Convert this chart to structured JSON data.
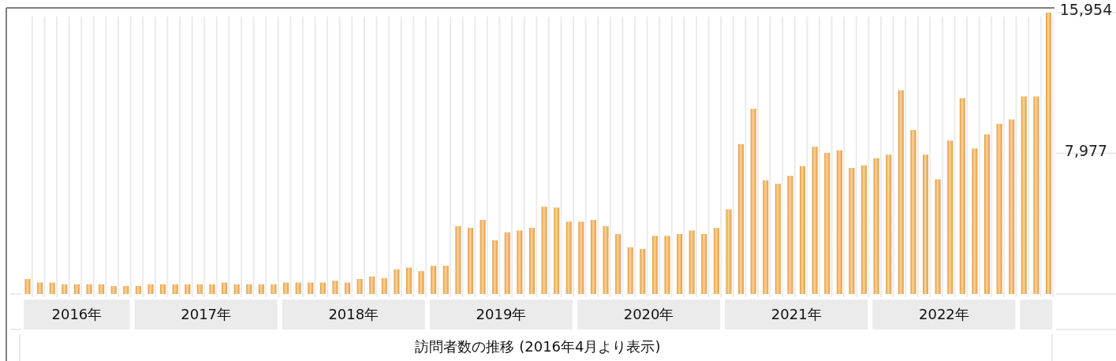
{
  "chart_data": {
    "type": "bar",
    "xlabel": "訪問者数の推移 (2016年4月より表示)",
    "x": [
      "2016-04",
      "2016-05",
      "2016-06",
      "2016-07",
      "2016-08",
      "2016-09",
      "2016-10",
      "2016-11",
      "2016-12",
      "2017-01",
      "2017-02",
      "2017-03",
      "2017-04",
      "2017-05",
      "2017-06",
      "2017-07",
      "2017-08",
      "2017-09",
      "2017-10",
      "2017-11",
      "2017-12",
      "2018-01",
      "2018-02",
      "2018-03",
      "2018-04",
      "2018-05",
      "2018-06",
      "2018-07",
      "2018-08",
      "2018-09",
      "2018-10",
      "2018-11",
      "2018-12",
      "2019-01",
      "2019-02",
      "2019-03",
      "2019-04",
      "2019-05",
      "2019-06",
      "2019-07",
      "2019-08",
      "2019-09",
      "2019-10",
      "2019-11",
      "2019-12",
      "2020-01",
      "2020-02",
      "2020-03",
      "2020-04",
      "2020-05",
      "2020-06",
      "2020-07",
      "2020-08",
      "2020-09",
      "2020-10",
      "2020-11",
      "2020-12",
      "2021-01",
      "2021-02",
      "2021-03",
      "2021-04",
      "2021-05",
      "2021-06",
      "2021-07",
      "2021-08",
      "2021-09",
      "2021-10",
      "2021-11",
      "2021-12",
      "2022-01",
      "2022-02",
      "2022-03",
      "2022-04",
      "2022-05",
      "2022-06",
      "2022-07",
      "2022-08",
      "2022-09",
      "2022-10",
      "2022-11",
      "2022-12",
      "2023-01",
      "2023-02",
      "2023-03"
    ],
    "values": [
      850,
      650,
      650,
      550,
      550,
      550,
      550,
      450,
      450,
      450,
      550,
      550,
      550,
      550,
      550,
      550,
      650,
      550,
      550,
      550,
      550,
      650,
      650,
      650,
      650,
      750,
      650,
      850,
      1000,
      900,
      1400,
      1500,
      1300,
      1600,
      1600,
      3850,
      3750,
      4200,
      3050,
      3500,
      3600,
      3750,
      4950,
      4900,
      4100,
      4100,
      4200,
      3850,
      3400,
      2650,
      2550,
      3300,
      3300,
      3400,
      3600,
      3400,
      3750,
      4800,
      8500,
      10500,
      6450,
      6250,
      6700,
      7250,
      8350,
      8000,
      8150,
      7150,
      7300,
      7700,
      7900,
      11550,
      9300,
      7900,
      6500,
      8700,
      11100,
      8250,
      9050,
      9650,
      9900,
      11200,
      11200,
      15954
    ],
    "color": "#e49a3e",
    "ylim": [
      0,
      15954
    ],
    "yticks": [
      {
        "value": 7977,
        "label": "7,977"
      },
      {
        "value": 15954,
        "label": "15,954"
      }
    ],
    "xlim": [
      "2016-03-16",
      "2023-03-16"
    ],
    "xticks": [
      {
        "value": "2016-08-01",
        "label": "2016年"
      },
      {
        "value": "2017-06-16",
        "label": "2017年"
      },
      {
        "value": "2018-06-16",
        "label": "2018年"
      },
      {
        "value": "2019-06-16",
        "label": "2019年"
      },
      {
        "value": "2020-06-16",
        "label": "2020年"
      },
      {
        "value": "2021-06-16",
        "label": "2021年"
      },
      {
        "value": "2022-06-16",
        "label": "2022年"
      }
    ],
    "grid": "x"
  }
}
